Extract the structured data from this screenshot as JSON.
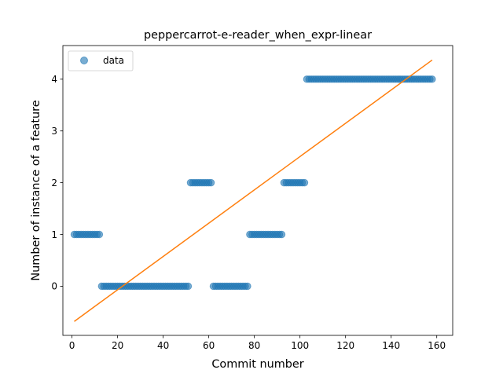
{
  "chart_data": {
    "type": "scatter",
    "title": "peppercarrot-e-reader_when_expr-linear",
    "xlabel": "Commit number",
    "ylabel": "Number of instance of a feature",
    "xlim": [
      -4,
      167
    ],
    "ylim": [
      -0.95,
      4.65
    ],
    "xticks": [
      0,
      20,
      40,
      60,
      80,
      100,
      120,
      140,
      160
    ],
    "yticks": [
      0,
      1,
      2,
      3,
      4
    ],
    "legend": {
      "placement": "top-left",
      "entries": [
        "data"
      ]
    },
    "grid": false,
    "series": [
      {
        "name": "data",
        "kind": "points",
        "color": "#1f77b4",
        "runs": [
          {
            "x_from": 1,
            "x_to": 12,
            "y": 1
          },
          {
            "x_from": 13,
            "x_to": 51,
            "y": 0
          },
          {
            "x_from": 52,
            "x_to": 61,
            "y": 2
          },
          {
            "x_from": 62,
            "x_to": 77,
            "y": 0
          },
          {
            "x_from": 78,
            "x_to": 92,
            "y": 1
          },
          {
            "x_from": 93,
            "x_to": 102,
            "y": 2
          },
          {
            "x_from": 103,
            "x_to": 158,
            "y": 4
          }
        ]
      },
      {
        "kind": "line",
        "color": "#ff7f0e",
        "x": [
          1,
          158
        ],
        "y": [
          -0.68,
          4.37
        ]
      }
    ]
  }
}
